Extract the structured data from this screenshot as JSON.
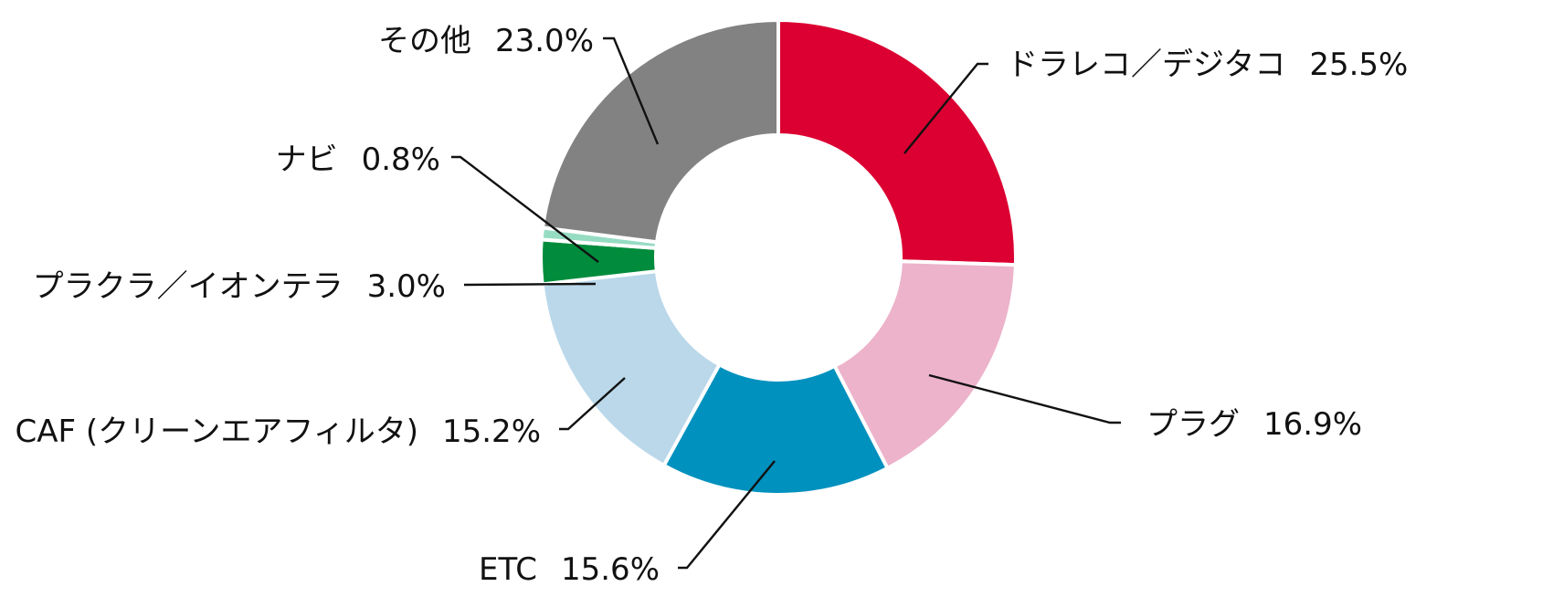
{
  "chart_data": {
    "type": "pie",
    "variant": "donut",
    "title": "",
    "slices": [
      {
        "name": "ドラレコ／デジタコ",
        "value": 25.5,
        "value_label": "25.5%",
        "color": "#DC0032"
      },
      {
        "name": "プラグ",
        "value": 16.9,
        "value_label": "16.9%",
        "color": "#ECB3CA"
      },
      {
        "name": "ETC",
        "value": 15.6,
        "value_label": "15.6%",
        "color": "#0091BE"
      },
      {
        "name": "CAF (クリーンエアフィルタ)",
        "value": 15.2,
        "value_label": "15.2%",
        "color": "#BAD8EA"
      },
      {
        "name": "プラクラ／イオンテラ",
        "value": 3.0,
        "value_label": "3.0%",
        "color": "#008C3C"
      },
      {
        "name": "ナビ",
        "value": 0.8,
        "value_label": "0.8%",
        "color": "#96DCC3"
      },
      {
        "name": "その他",
        "value": 23.0,
        "value_label": "23.0%",
        "color": "#828282"
      }
    ],
    "legend": "none",
    "labels": "outside-with-leader-lines"
  }
}
